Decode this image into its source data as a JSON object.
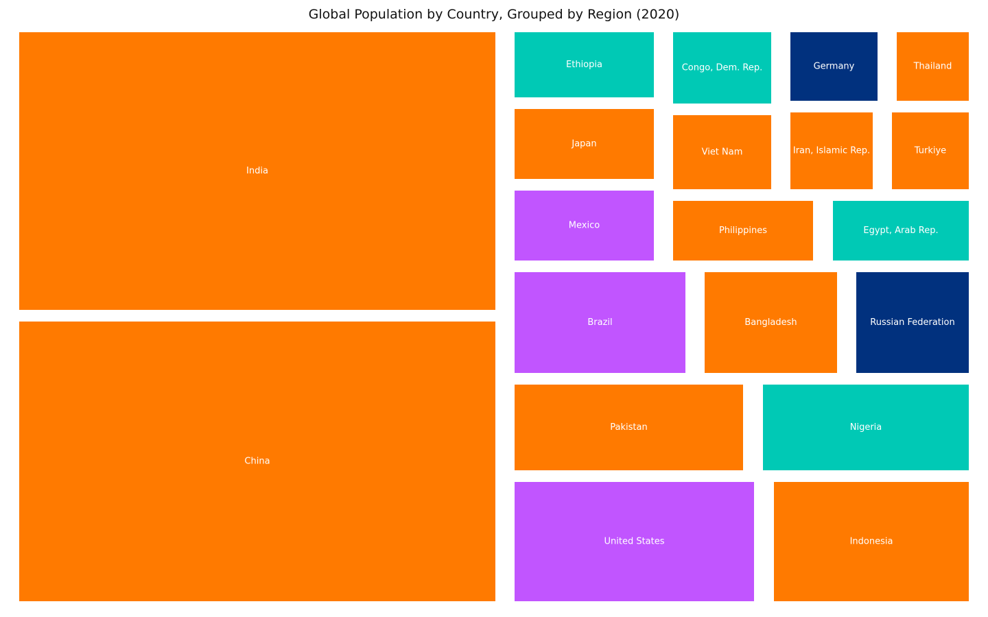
{
  "chart_data": {
    "type": "treemap",
    "title": "Global Population by Country, Grouped by Region (2020)",
    "colors": {
      "orange": "#FF7A00",
      "teal": "#00C9B5",
      "purple": "#C155FF",
      "navy": "#01317E"
    },
    "tiles": [
      {
        "label": "India",
        "color": "#FF7A00"
      },
      {
        "label": "China",
        "color": "#FF7A00"
      },
      {
        "label": "Ethiopia",
        "color": "#00C9B5"
      },
      {
        "label": "Congo, Dem. Rep.",
        "color": "#00C9B5"
      },
      {
        "label": "Germany",
        "color": "#01317E"
      },
      {
        "label": "Thailand",
        "color": "#FF7A00"
      },
      {
        "label": "Japan",
        "color": "#FF7A00"
      },
      {
        "label": "Viet Nam",
        "color": "#FF7A00"
      },
      {
        "label": "Iran, Islamic Rep.",
        "color": "#FF7A00"
      },
      {
        "label": "Turkiye",
        "color": "#FF7A00"
      },
      {
        "label": "Mexico",
        "color": "#C155FF"
      },
      {
        "label": "Philippines",
        "color": "#FF7A00"
      },
      {
        "label": "Egypt, Arab Rep.",
        "color": "#00C9B5"
      },
      {
        "label": "Brazil",
        "color": "#C155FF"
      },
      {
        "label": "Bangladesh",
        "color": "#FF7A00"
      },
      {
        "label": "Russian Federation",
        "color": "#01317E"
      },
      {
        "label": "Pakistan",
        "color": "#FF7A00"
      },
      {
        "label": "Nigeria",
        "color": "#00C9B5"
      },
      {
        "label": "United States",
        "color": "#C155FF"
      },
      {
        "label": "Indonesia",
        "color": "#FF7A00"
      }
    ]
  }
}
